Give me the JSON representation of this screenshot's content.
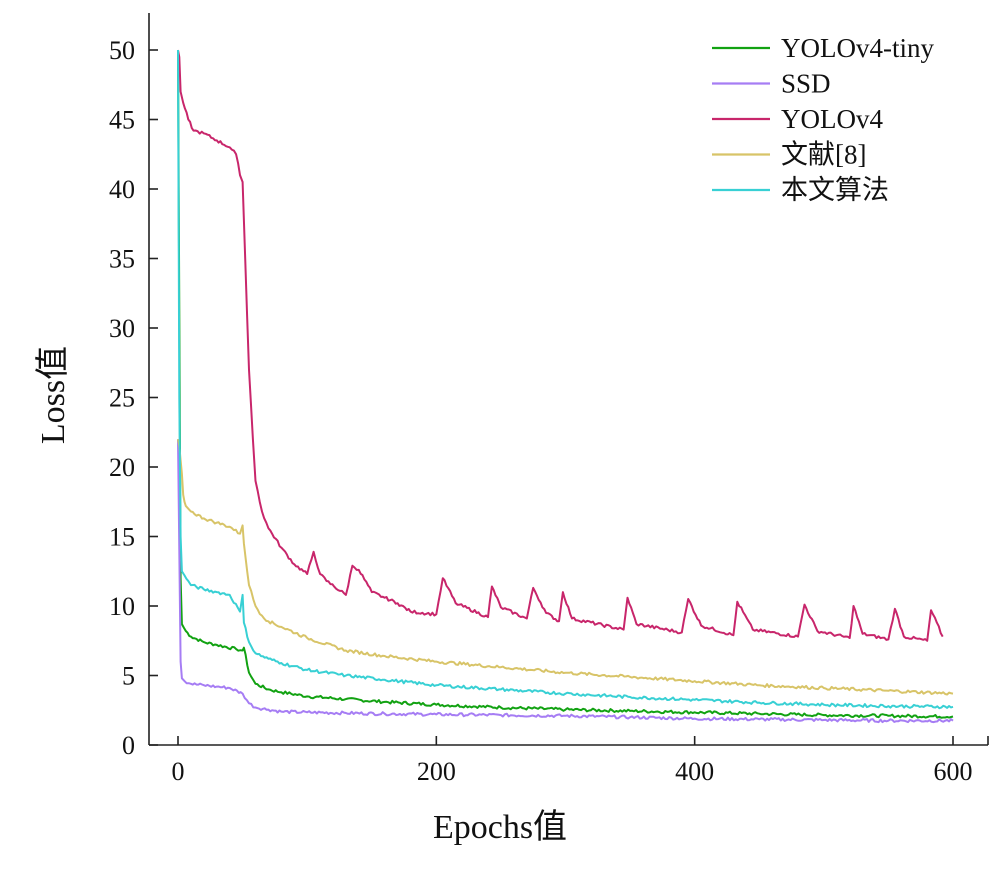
{
  "chart_data": {
    "type": "line",
    "xlabel": "Epochs值",
    "ylabel": "Loss值",
    "xlim": [
      -20,
      620
    ],
    "ylim": [
      0,
      52
    ],
    "xticks": [
      0,
      200,
      400,
      600
    ],
    "yticks": [
      0,
      5,
      10,
      15,
      20,
      25,
      30,
      35,
      40,
      45,
      50
    ],
    "legend": "top-right",
    "grid": false,
    "series": [
      {
        "name": "YOLOv4-tiny",
        "color": "#12a212",
        "x": [
          0,
          2,
          3,
          6,
          10,
          20,
          30,
          45,
          50,
          51,
          55,
          60,
          70,
          80,
          100,
          130,
          160,
          200,
          250,
          300,
          350,
          400,
          450,
          500,
          550,
          600
        ],
        "y": [
          50,
          12,
          8.7,
          8.2,
          7.8,
          7.4,
          7.2,
          6.9,
          6.8,
          7.0,
          5.2,
          4.4,
          4.0,
          3.8,
          3.5,
          3.3,
          3.1,
          2.9,
          2.7,
          2.55,
          2.45,
          2.35,
          2.25,
          2.15,
          2.1,
          2.05
        ]
      },
      {
        "name": "SSD",
        "color": "#a67df4",
        "x": [
          0,
          1,
          2,
          3,
          5,
          10,
          20,
          30,
          40,
          50,
          55,
          60,
          70,
          80,
          100,
          130,
          160,
          200,
          250,
          300,
          350,
          400,
          450,
          500,
          550,
          600
        ],
        "y": [
          22,
          14,
          6,
          4.8,
          4.6,
          4.4,
          4.3,
          4.2,
          4.1,
          3.7,
          3.0,
          2.7,
          2.55,
          2.4,
          2.35,
          2.3,
          2.25,
          2.2,
          2.15,
          2.1,
          2.0,
          1.9,
          1.85,
          1.8,
          1.75,
          1.75
        ]
      },
      {
        "name": "YOLOv4",
        "color": "#c8266b",
        "x": [
          0,
          1,
          2,
          4,
          8,
          12,
          20,
          30,
          40,
          45,
          48,
          50,
          52,
          55,
          58,
          60,
          65,
          70,
          80,
          90,
          100,
          105,
          110,
          115,
          130,
          135,
          140,
          150,
          160,
          170,
          180,
          200,
          205,
          215,
          240,
          243,
          250,
          270,
          275,
          285,
          295,
          298,
          305,
          345,
          348,
          355,
          390,
          395,
          405,
          430,
          433,
          445,
          480,
          485,
          495,
          520,
          523,
          530,
          550,
          555,
          562,
          580,
          583,
          592
        ],
        "y": [
          50,
          49.5,
          47,
          46.2,
          45,
          44.2,
          44,
          43.5,
          43,
          42.5,
          41,
          40.5,
          35,
          27,
          22,
          19,
          16.8,
          15.6,
          14.2,
          13,
          12.3,
          13.9,
          12.3,
          11.8,
          10.8,
          12.9,
          12.6,
          11,
          10.6,
          10.2,
          9.6,
          9.4,
          12,
          10.2,
          9.2,
          11.4,
          9.9,
          9.1,
          11.3,
          9.5,
          8.9,
          11,
          9.1,
          8.3,
          10.6,
          8.7,
          8.1,
          10.5,
          8.6,
          7.9,
          10.3,
          8.3,
          7.8,
          10.1,
          8.2,
          7.7,
          10.0,
          8.0,
          7.6,
          9.8,
          7.8,
          7.5,
          9.7,
          7.8
        ]
      },
      {
        "name": "文献[8]",
        "color": "#d8c468",
        "x": [
          0,
          1,
          2,
          3,
          4,
          5,
          6,
          8,
          10,
          20,
          30,
          40,
          48,
          50,
          51,
          55,
          60,
          65,
          70,
          80,
          100,
          130,
          160,
          200,
          250,
          300,
          350,
          400,
          450,
          500,
          550,
          600
        ],
        "y": [
          22,
          21.5,
          20.5,
          19.5,
          18,
          17.5,
          17.2,
          17,
          16.8,
          16.3,
          16.0,
          15.7,
          15.2,
          15.8,
          14.5,
          11.5,
          10,
          9.3,
          8.9,
          8.5,
          7.7,
          6.8,
          6.4,
          6.0,
          5.6,
          5.2,
          4.9,
          4.6,
          4.3,
          4.1,
          3.9,
          3.7
        ]
      },
      {
        "name": "本文算法",
        "color": "#38d0d4",
        "x": [
          0,
          1,
          2,
          3,
          5,
          8,
          10,
          20,
          30,
          40,
          48,
          50,
          51,
          55,
          60,
          70,
          80,
          100,
          130,
          160,
          200,
          250,
          300,
          350,
          400,
          450,
          500,
          550,
          600
        ],
        "y": [
          50,
          25,
          15,
          12.5,
          12.2,
          11.8,
          11.5,
          11.2,
          11.0,
          10.8,
          9.6,
          10.8,
          8.8,
          7.4,
          6.6,
          6.2,
          5.9,
          5.4,
          5.0,
          4.7,
          4.3,
          4.0,
          3.7,
          3.45,
          3.25,
          3.05,
          2.9,
          2.8,
          2.75
        ]
      }
    ]
  }
}
